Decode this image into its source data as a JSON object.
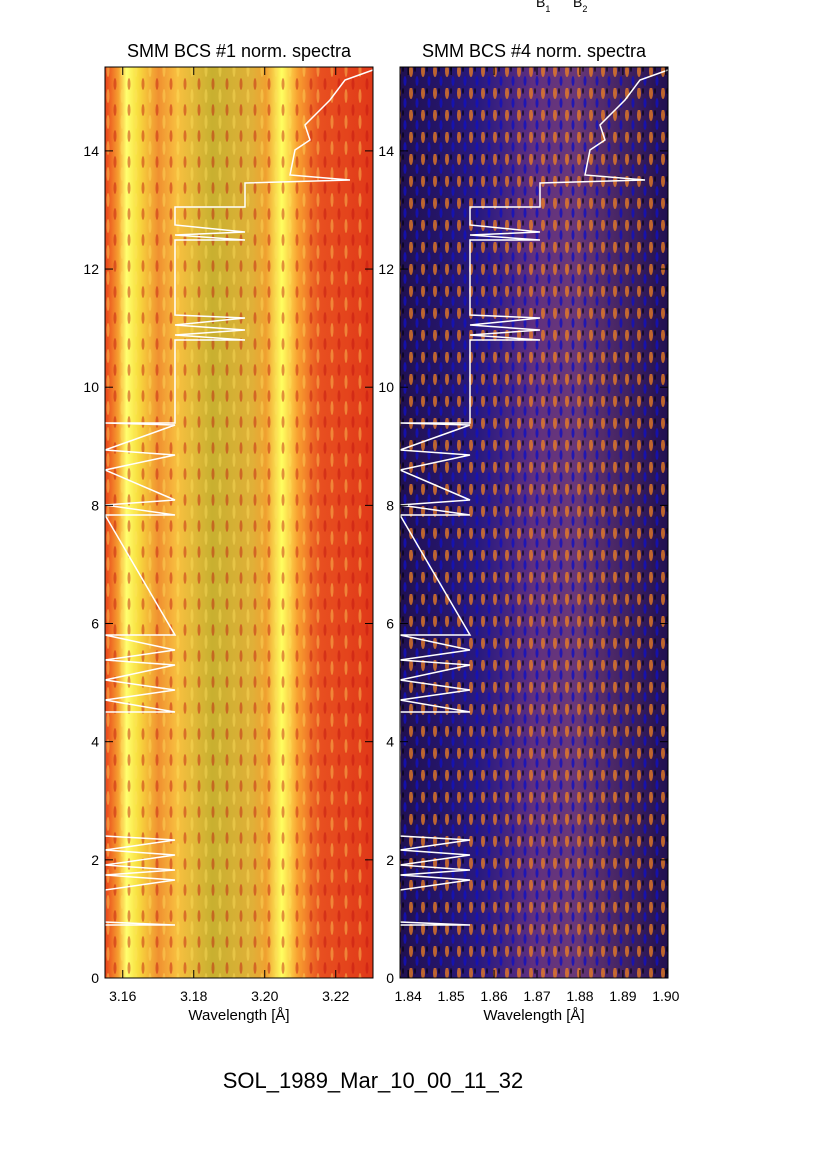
{
  "chart_data": [
    {
      "type": "heatmap",
      "title": "SMM BCS #1 norm. spectra",
      "xlabel": "Wavelength [Å]",
      "xlim": [
        3.155,
        3.2305
      ],
      "xticks": [
        3.16,
        3.18,
        {
          "value": 3.2,
          "label": "3.20"
        },
        3.22
      ],
      "ylim": [
        0,
        15.42
      ],
      "yticks": [
        0,
        2,
        4,
        6,
        8,
        10,
        12,
        14
      ]
    },
    {
      "type": "heatmap",
      "title": "SMM BCS #4 norm. spectra",
      "xlabel": "Wavelength [Å]",
      "xlim": [
        1.8381,
        1.9005
      ],
      "xticks": [
        1.84,
        1.85,
        1.86,
        1.87,
        1.88,
        1.89,
        {
          "value": 1.9,
          "label": "1.90"
        }
      ],
      "ylim": [
        0,
        15.42
      ],
      "yticks": [
        0,
        2,
        4,
        6,
        8,
        10,
        12,
        14
      ]
    }
  ],
  "top_labels": [
    {
      "base": "B",
      "sub": "1"
    },
    {
      "base": "B",
      "sub": "2"
    }
  ],
  "footer": "SOL_1989_Mar_10_00_11_32"
}
